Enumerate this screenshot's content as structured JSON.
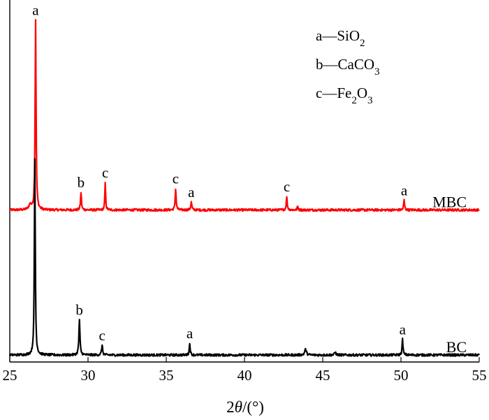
{
  "chart_data": {
    "type": "line",
    "xlabel_parts": [
      {
        "text": "2",
        "style": "normal"
      },
      {
        "text": "θ",
        "style": "italic"
      },
      {
        "text": "/(°)",
        "style": "normal"
      }
    ],
    "ylabel": "",
    "xlim": [
      25,
      55
    ],
    "xticks": [
      "25",
      "30",
      "35",
      "40",
      "45",
      "50",
      "55"
    ],
    "yticks": [],
    "grid": false,
    "legend": {
      "placement": "top-right",
      "entries": [
        {
          "parts": [
            {
              "text": "a—SiO",
              "sub": false
            },
            {
              "text": "2",
              "sub": true
            }
          ]
        },
        {
          "parts": [
            {
              "text": "b—CaCO",
              "sub": false
            },
            {
              "text": "3",
              "sub": true
            }
          ]
        },
        {
          "parts": [
            {
              "text": "c—Fe",
              "sub": false
            },
            {
              "text": "2",
              "sub": true
            },
            {
              "text": "O",
              "sub": false
            },
            {
              "text": "3",
              "sub": true
            }
          ]
        }
      ]
    },
    "series": [
      {
        "name": "MBC",
        "color": "#ff0000",
        "baseline": 0.74,
        "noise": 0.006,
        "peaks": [
          {
            "x": 26.65,
            "height": 0.97,
            "width": 0.07,
            "label": "a"
          },
          {
            "x": 29.55,
            "height": 0.09,
            "width": 0.07,
            "label": "b"
          },
          {
            "x": 31.1,
            "height": 0.14,
            "width": 0.06,
            "label": "c"
          },
          {
            "x": 35.6,
            "height": 0.11,
            "width": 0.07,
            "label": "c"
          },
          {
            "x": 36.6,
            "height": 0.04,
            "width": 0.08,
            "label": "a"
          },
          {
            "x": 42.7,
            "height": 0.07,
            "width": 0.07,
            "label": "c"
          },
          {
            "x": 50.2,
            "height": 0.05,
            "width": 0.07,
            "label": "a"
          },
          {
            "x": 43.4,
            "height": 0.018,
            "width": 0.07,
            "label": ""
          },
          {
            "x": 26.3,
            "height": 0.025,
            "width": 0.2,
            "label": ""
          }
        ]
      },
      {
        "name": "BC",
        "color": "#000000",
        "baseline": 0.0,
        "noise": 0.006,
        "peaks": [
          {
            "x": 26.6,
            "height": 1.0,
            "width": 0.07,
            "label": ""
          },
          {
            "x": 29.45,
            "height": 0.18,
            "width": 0.08,
            "label": "b"
          },
          {
            "x": 30.9,
            "height": 0.05,
            "width": 0.08,
            "label": "c"
          },
          {
            "x": 36.5,
            "height": 0.06,
            "width": 0.07,
            "label": "a"
          },
          {
            "x": 50.1,
            "height": 0.08,
            "width": 0.07,
            "label": "a"
          },
          {
            "x": 43.9,
            "height": 0.03,
            "width": 0.12,
            "label": ""
          },
          {
            "x": 45.8,
            "height": 0.015,
            "width": 0.1,
            "label": ""
          }
        ]
      }
    ]
  }
}
